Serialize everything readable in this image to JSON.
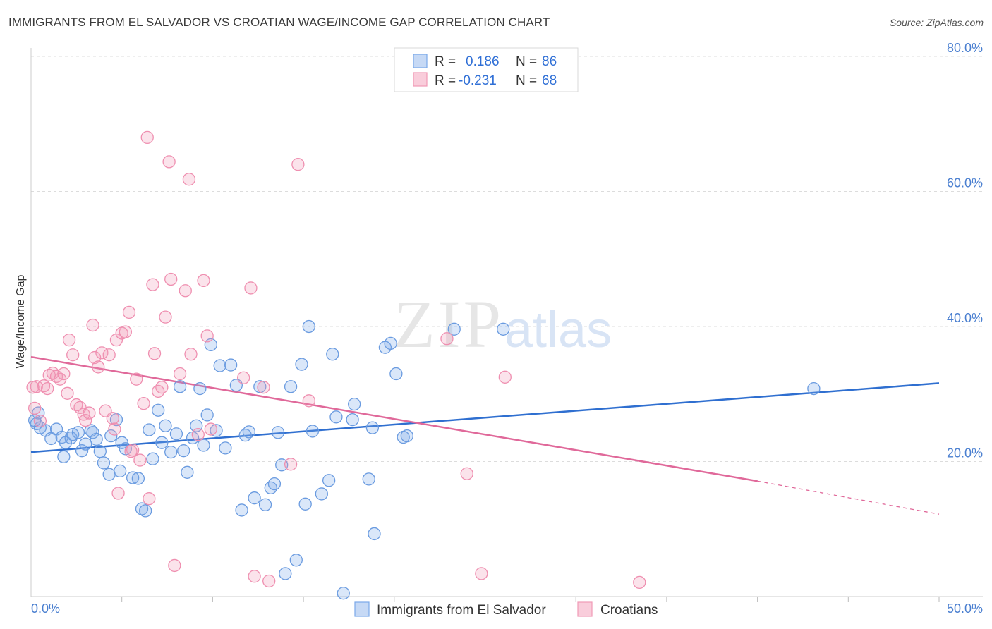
{
  "header": {
    "title": "IMMIGRANTS FROM EL SALVADOR VS CROATIAN WAGE/INCOME GAP CORRELATION CHART",
    "source": "Source: ZipAtlas.com"
  },
  "watermark": {
    "zip": "ZIP",
    "atlas": "atlas"
  },
  "legend": {
    "rows": [
      {
        "r_label": "R =",
        "r_value": "0.186",
        "n_label": "N =",
        "n_value": "86",
        "color": "#7aa8e8"
      },
      {
        "r_label": "R =",
        "r_value": "-0.231",
        "n_label": "N =",
        "n_value": "68",
        "color": "#f099b6"
      }
    ]
  },
  "bottom_legend": {
    "items": [
      {
        "label": "Immigrants from El Salvador",
        "color": "#7aa8e8"
      },
      {
        "label": "Croatians",
        "color": "#f099b6"
      }
    ]
  },
  "chart_data": {
    "type": "scatter",
    "title": "IMMIGRANTS FROM EL SALVADOR VS CROATIAN WAGE/INCOME GAP CORRELATION CHART",
    "xlabel": "",
    "ylabel": "Wage/Income Gap",
    "xlim": [
      0,
      50
    ],
    "ylim": [
      0,
      80
    ],
    "x_tick_labels": [
      "0.0%",
      "50.0%"
    ],
    "y_ticks": [
      20,
      40,
      60,
      80
    ],
    "y_tick_labels": [
      "20.0%",
      "40.0%",
      "60.0%",
      "80.0%"
    ],
    "grid": true,
    "legend_placement": "top-center",
    "series": [
      {
        "name": "Immigrants from El Salvador",
        "color": "#6a9be0",
        "r": 0.186,
        "n": 86,
        "trend": {
          "x": [
            0,
            50
          ],
          "y": [
            21.4,
            31.6
          ]
        },
        "points": [
          [
            0.3,
            25.6
          ],
          [
            0.5,
            25.0
          ],
          [
            0.8,
            24.6
          ],
          [
            1.1,
            23.4
          ],
          [
            1.4,
            24.8
          ],
          [
            1.7,
            23.6
          ],
          [
            1.8,
            20.7
          ],
          [
            1.9,
            22.8
          ],
          [
            2.2,
            23.5
          ],
          [
            2.3,
            24.0
          ],
          [
            2.6,
            24.3
          ],
          [
            2.8,
            21.6
          ],
          [
            3.0,
            22.6
          ],
          [
            3.3,
            24.6
          ],
          [
            3.4,
            24.3
          ],
          [
            3.6,
            23.3
          ],
          [
            3.8,
            21.5
          ],
          [
            4.0,
            19.8
          ],
          [
            4.3,
            18.1
          ],
          [
            4.4,
            23.8
          ],
          [
            4.7,
            26.2
          ],
          [
            4.9,
            18.6
          ],
          [
            5.0,
            22.8
          ],
          [
            5.2,
            21.9
          ],
          [
            5.6,
            17.6
          ],
          [
            5.9,
            17.5
          ],
          [
            6.1,
            13.0
          ],
          [
            6.3,
            12.7
          ],
          [
            6.5,
            24.7
          ],
          [
            6.7,
            20.4
          ],
          [
            7.0,
            27.6
          ],
          [
            7.2,
            22.8
          ],
          [
            7.4,
            25.3
          ],
          [
            7.7,
            21.4
          ],
          [
            8.0,
            24.1
          ],
          [
            8.2,
            31.1
          ],
          [
            8.4,
            21.6
          ],
          [
            8.6,
            18.4
          ],
          [
            8.9,
            23.5
          ],
          [
            9.1,
            25.3
          ],
          [
            9.3,
            30.8
          ],
          [
            9.5,
            22.4
          ],
          [
            9.7,
            26.9
          ],
          [
            9.9,
            37.3
          ],
          [
            10.2,
            24.6
          ],
          [
            10.4,
            34.2
          ],
          [
            10.7,
            22.0
          ],
          [
            11.0,
            34.3
          ],
          [
            11.3,
            31.3
          ],
          [
            11.6,
            12.8
          ],
          [
            11.8,
            23.9
          ],
          [
            12.0,
            24.4
          ],
          [
            12.3,
            14.6
          ],
          [
            12.6,
            31.1
          ],
          [
            12.9,
            13.6
          ],
          [
            13.2,
            16.1
          ],
          [
            13.4,
            16.7
          ],
          [
            13.6,
            24.3
          ],
          [
            13.8,
            19.5
          ],
          [
            14.0,
            3.4
          ],
          [
            14.3,
            31.1
          ],
          [
            14.6,
            5.4
          ],
          [
            14.9,
            34.4
          ],
          [
            15.1,
            13.7
          ],
          [
            15.3,
            40.0
          ],
          [
            15.5,
            24.5
          ],
          [
            16.0,
            15.2
          ],
          [
            16.4,
            17.2
          ],
          [
            16.6,
            35.9
          ],
          [
            16.8,
            26.6
          ],
          [
            17.2,
            0.5
          ],
          [
            17.7,
            26.2
          ],
          [
            17.8,
            28.5
          ],
          [
            18.6,
            17.4
          ],
          [
            18.8,
            25.0
          ],
          [
            18.9,
            9.3
          ],
          [
            19.5,
            36.9
          ],
          [
            19.8,
            37.5
          ],
          [
            20.1,
            33.0
          ],
          [
            20.5,
            23.6
          ],
          [
            20.7,
            23.8
          ],
          [
            23.3,
            39.6
          ],
          [
            26.0,
            39.6
          ],
          [
            43.1,
            30.8
          ],
          [
            0.4,
            27.2
          ],
          [
            0.2,
            26.1
          ]
        ]
      },
      {
        "name": "Croatians",
        "color": "#ef8fb0",
        "r": -0.231,
        "n": 68,
        "trend": {
          "x": [
            0,
            40
          ],
          "y": [
            35.5,
            17.1
          ]
        },
        "trend_dashed": {
          "x": [
            40,
            50
          ],
          "y": [
            17.1,
            12.2
          ]
        },
        "points": [
          [
            0.2,
            27.9
          ],
          [
            0.3,
            31.1
          ],
          [
            0.5,
            26.0
          ],
          [
            0.7,
            31.2
          ],
          [
            0.9,
            30.8
          ],
          [
            1.0,
            32.8
          ],
          [
            1.2,
            33.1
          ],
          [
            1.4,
            32.6
          ],
          [
            1.6,
            32.2
          ],
          [
            1.8,
            33.0
          ],
          [
            2.0,
            30.1
          ],
          [
            2.1,
            38.0
          ],
          [
            2.3,
            35.8
          ],
          [
            2.5,
            28.4
          ],
          [
            2.7,
            28.0
          ],
          [
            2.9,
            27.0
          ],
          [
            3.0,
            26.1
          ],
          [
            3.2,
            27.2
          ],
          [
            3.4,
            40.2
          ],
          [
            3.5,
            35.4
          ],
          [
            3.7,
            34.0
          ],
          [
            3.9,
            36.1
          ],
          [
            4.1,
            27.5
          ],
          [
            4.3,
            35.8
          ],
          [
            4.5,
            26.4
          ],
          [
            4.6,
            24.8
          ],
          [
            4.7,
            38.0
          ],
          [
            4.8,
            15.3
          ],
          [
            5.0,
            39.0
          ],
          [
            5.2,
            39.2
          ],
          [
            5.4,
            42.1
          ],
          [
            5.6,
            21.7
          ],
          [
            5.8,
            32.2
          ],
          [
            6.0,
            20.2
          ],
          [
            6.2,
            28.6
          ],
          [
            6.4,
            68.0
          ],
          [
            6.5,
            14.5
          ],
          [
            6.7,
            46.2
          ],
          [
            6.8,
            36.0
          ],
          [
            7.0,
            30.4
          ],
          [
            7.2,
            31.0
          ],
          [
            7.4,
            41.4
          ],
          [
            7.6,
            64.4
          ],
          [
            7.7,
            47.0
          ],
          [
            7.9,
            4.6
          ],
          [
            8.2,
            33.0
          ],
          [
            8.5,
            45.3
          ],
          [
            8.7,
            61.8
          ],
          [
            8.8,
            35.9
          ],
          [
            9.2,
            24.0
          ],
          [
            9.5,
            46.8
          ],
          [
            9.7,
            38.6
          ],
          [
            9.9,
            24.8
          ],
          [
            11.7,
            32.4
          ],
          [
            12.1,
            45.7
          ],
          [
            12.3,
            3.0
          ],
          [
            12.8,
            31.0
          ],
          [
            13.1,
            2.3
          ],
          [
            14.3,
            19.6
          ],
          [
            14.7,
            64.0
          ],
          [
            15.3,
            29.0
          ],
          [
            22.9,
            38.2
          ],
          [
            24.0,
            18.2
          ],
          [
            24.8,
            3.4
          ],
          [
            26.1,
            32.5
          ],
          [
            33.5,
            2.1
          ],
          [
            0.1,
            31.0
          ],
          [
            5.5,
            21.5
          ]
        ]
      }
    ]
  }
}
